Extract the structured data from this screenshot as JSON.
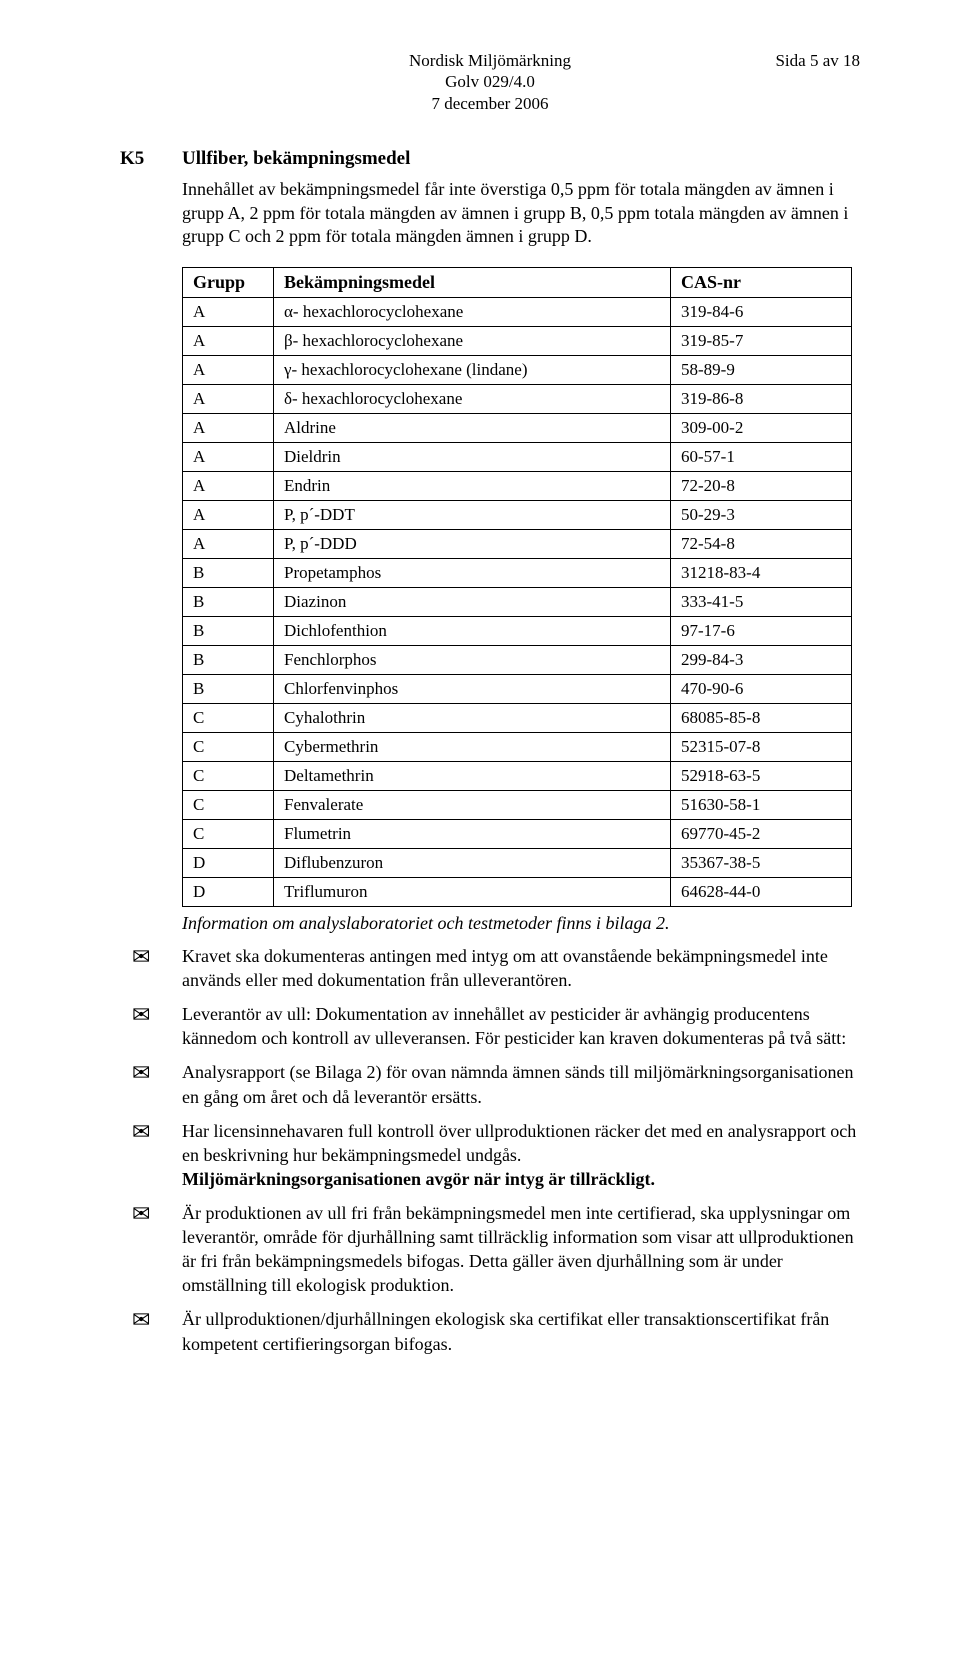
{
  "header": {
    "center_line1": "Nordisk Miljömärkning",
    "center_line2": "Golv 029/4.0",
    "center_line3": "7 december 2006",
    "right": "Sida 5 av 18"
  },
  "k5": {
    "code": "K5",
    "title": "Ullfiber, bekämpningsmedel",
    "intro": "Innehållet av bekämpningsmedel får inte överstiga 0,5 ppm för totala mängden av ämnen i grupp A, 2 ppm för totala mängden av ämnen i grupp B, 0,5 ppm totala mängden av ämnen i grupp C och 2 ppm för totala mängden ämnen i grupp D."
  },
  "table": {
    "head": {
      "c1": "Grupp",
      "c2": "Bekämpningsmedel",
      "c3": "CAS-nr"
    },
    "rows": [
      {
        "g": "A",
        "n": "α- hexachlorocyclohexane",
        "c": "319-84-6"
      },
      {
        "g": "A",
        "n": "β- hexachlorocyclohexane",
        "c": "319-85-7"
      },
      {
        "g": "A",
        "n": "γ- hexachlorocyclohexane (lindane)",
        "c": "58-89-9"
      },
      {
        "g": "A",
        "n": "δ- hexachlorocyclohexane",
        "c": "319-86-8"
      },
      {
        "g": "A",
        "n": "Aldrine",
        "c": "309-00-2"
      },
      {
        "g": "A",
        "n": "Dieldrin",
        "c": "60-57-1"
      },
      {
        "g": "A",
        "n": "Endrin",
        "c": "72-20-8"
      },
      {
        "g": "A",
        "n": "P, p´-DDT",
        "c": "50-29-3"
      },
      {
        "g": "A",
        "n": "P, p´-DDD",
        "c": "72-54-8"
      },
      {
        "g": "B",
        "n": "Propetamphos",
        "c": "31218-83-4"
      },
      {
        "g": "B",
        "n": "Diazinon",
        "c": "333-41-5"
      },
      {
        "g": "B",
        "n": "Dichlofenthion",
        "c": "97-17-6"
      },
      {
        "g": "B",
        "n": "Fenchlorphos",
        "c": "299-84-3"
      },
      {
        "g": "B",
        "n": "Chlorfenvinphos",
        "c": "470-90-6"
      },
      {
        "g": "C",
        "n": "Cyhalothrin",
        "c": "68085-85-8"
      },
      {
        "g": "C",
        "n": "Cybermethrin",
        "c": "52315-07-8"
      },
      {
        "g": "C",
        "n": "Deltamethrin",
        "c": "52918-63-5"
      },
      {
        "g": "C",
        "n": "Fenvalerate",
        "c": "51630-58-1"
      },
      {
        "g": "C",
        "n": "Flumetrin",
        "c": "69770-45-2"
      },
      {
        "g": "D",
        "n": "Diflubenzuron",
        "c": "35367-38-5"
      },
      {
        "g": "D",
        "n": "Triflumuron",
        "c": "64628-44-0"
      }
    ]
  },
  "info_line": "Information om analyslaboratoriet och testmetoder finns i bilaga 2.",
  "bullets": [
    {
      "text": "Kravet ska dokumenteras antingen med intyg om att ovanstående bekämpningsmedel inte används eller med dokumentation från ulleverantören."
    },
    {
      "text": "Leverantör av ull: Dokumentation av innehållet av pesticider är avhängig producentens kännedom och kontroll av ulleveransen. För pesticider kan kraven dokumenteras på två sätt:"
    },
    {
      "text": "Analysrapport (se Bilaga 2) för ovan nämnda ämnen sänds till miljömärkningsorganisationen en gång om året och då leverantör ersätts."
    },
    {
      "text": "Har licensinnehavaren full kontroll över ullproduktionen räcker det med en analysrapport och en beskrivning hur bekämpningsmedel undgås.",
      "bold_after": "Miljömärkningsorganisationen avgör när intyg är tillräckligt."
    },
    {
      "text": "Är produktionen av ull fri från bekämpningsmedel men inte certifierad, ska upplysningar om leverantör, område för djurhållning samt tillräcklig information som visar att ullproduktionen är fri från bekämpningsmedels bifogas. Detta gäller även djurhållning som är under omställning till ekologisk produktion."
    },
    {
      "text": "Är ullproduktionen/djurhållningen ekologisk ska certifikat eller transaktionscertifikat från kompetent certifieringsorgan bifogas."
    }
  ],
  "envelope_glyph": "✉"
}
